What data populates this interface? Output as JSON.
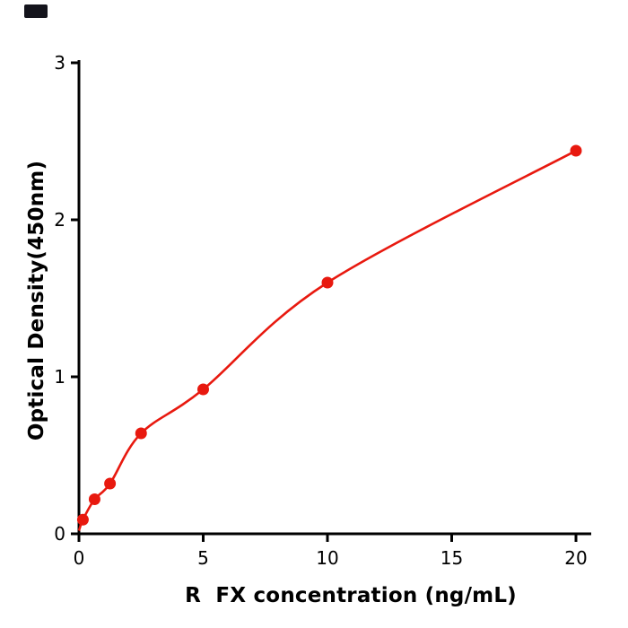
{
  "page": {
    "background": "#ffffff"
  },
  "corner_mark": {
    "color": "#14141c"
  },
  "chart_data": {
    "type": "scatter",
    "title": "",
    "xlabel": "R  FX concentration (ng/mL)",
    "ylabel": "Optical Density(450nm)",
    "x": [
      0.16,
      0.63,
      1.25,
      2.5,
      5,
      10,
      20
    ],
    "y": [
      0.09,
      0.22,
      0.32,
      0.64,
      0.92,
      1.6,
      2.44
    ],
    "curve_start": {
      "x": 0,
      "y": 0.02
    },
    "xlim": [
      0,
      20
    ],
    "ylim": [
      0,
      3
    ],
    "xticks": [
      0,
      5,
      10,
      15,
      20
    ],
    "yticks": [
      0,
      1,
      2,
      3
    ],
    "point_color": "#e8190f",
    "line_color": "#e8190f",
    "axis_color": "#000000",
    "tick_label_color": "#000000",
    "grid": false,
    "legend": null
  }
}
